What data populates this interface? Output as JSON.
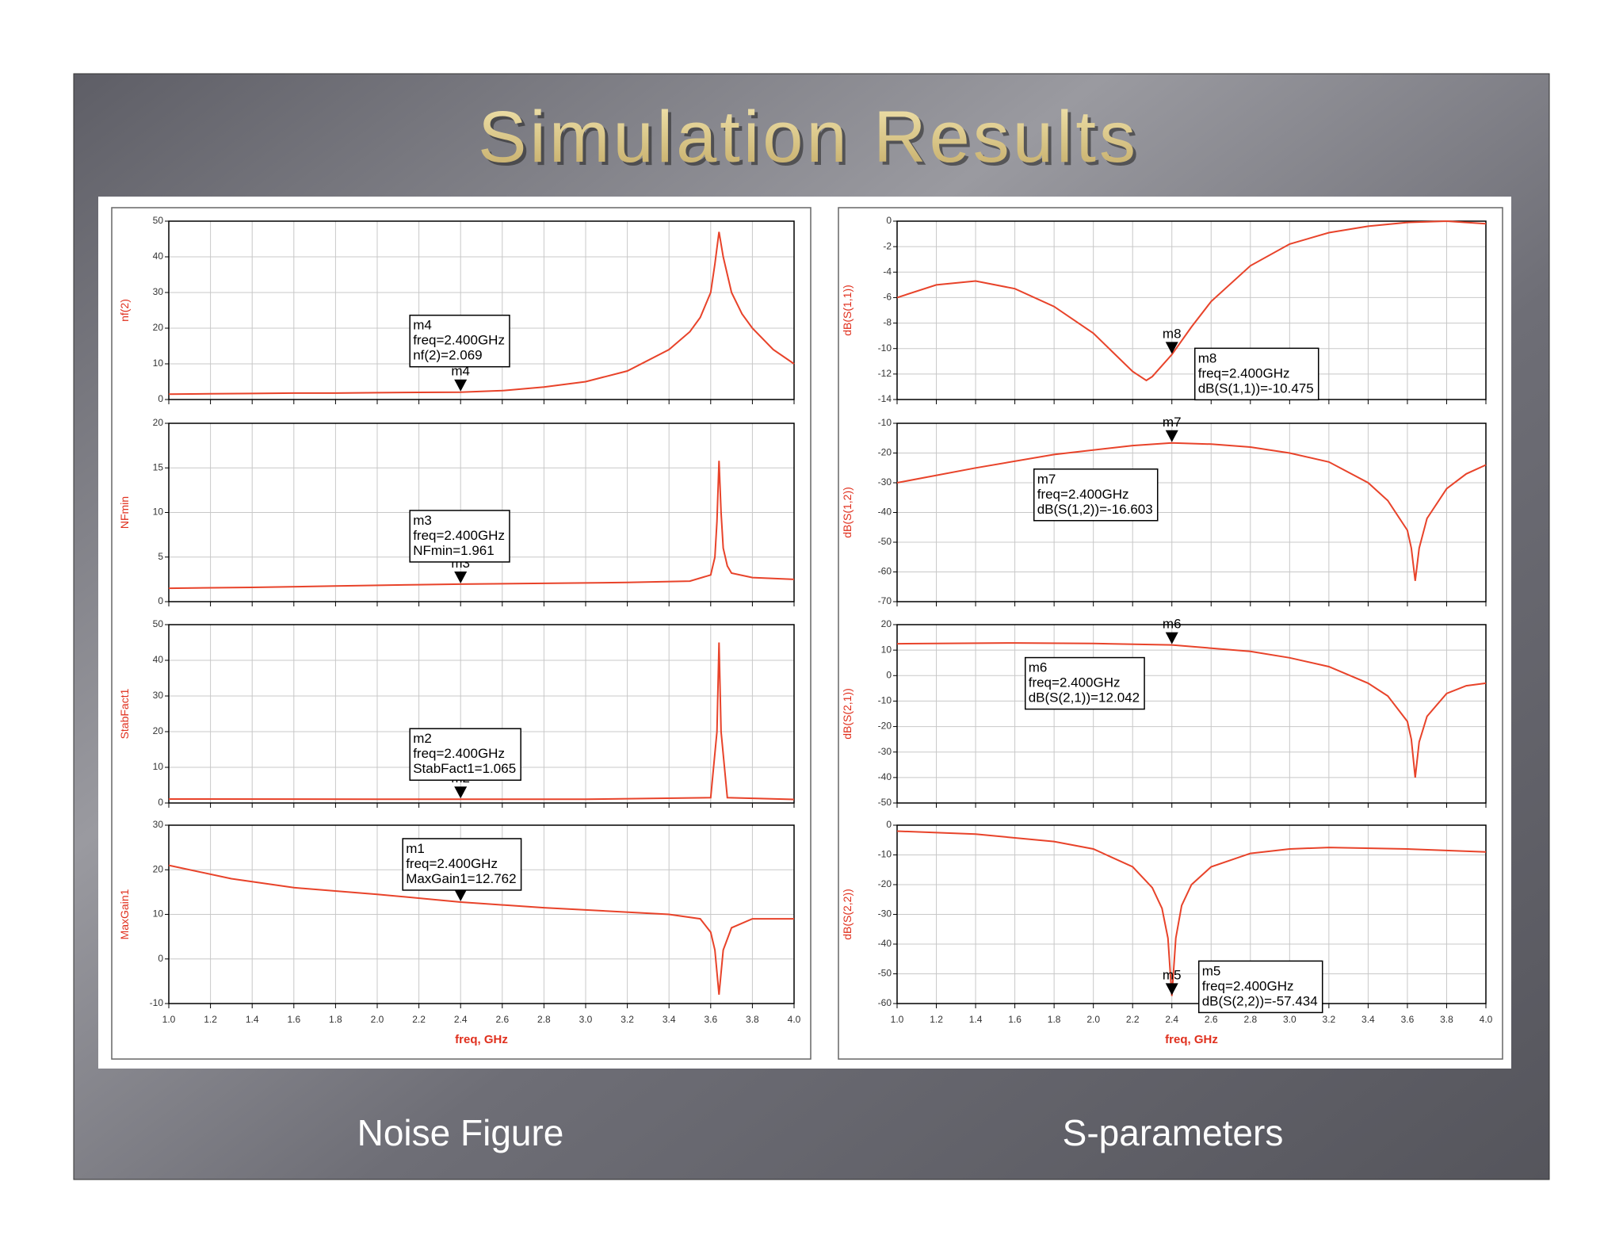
{
  "slide": {
    "title": "Simulation Results",
    "captions": [
      "Noise Figure",
      "S-parameters"
    ]
  },
  "chart_data": [
    {
      "type": "line",
      "ylabel": "nf(2)",
      "color": "#e8432a",
      "grid": true,
      "x": [
        1.0,
        1.2,
        1.4,
        1.6,
        1.8,
        2.0,
        2.2,
        2.4,
        2.6,
        2.8,
        3.0,
        3.2,
        3.4,
        3.5,
        3.55,
        3.6,
        3.62,
        3.64,
        3.66,
        3.7,
        3.75,
        3.8,
        3.9,
        4.0
      ],
      "values": [
        1.5,
        1.6,
        1.7,
        1.8,
        1.8,
        1.9,
        2.0,
        2.069,
        2.5,
        3.5,
        5,
        8,
        14,
        19,
        23,
        30,
        38,
        47,
        40,
        30,
        24,
        20,
        14,
        10
      ],
      "xlim": [
        1,
        4
      ],
      "xticks": [
        1,
        1.2,
        1.4,
        1.6,
        1.8,
        2,
        2.2,
        2.4,
        2.6,
        2.8,
        3,
        3.2,
        3.4,
        3.6,
        3.8,
        4
      ],
      "ylim": [
        0,
        50
      ],
      "yticks": [
        0,
        10,
        20,
        30,
        40,
        50
      ],
      "marker": {
        "name": "m4",
        "x": 2.4,
        "y": 2.069,
        "text": [
          "freq=2.400GHz",
          "nf(2)=2.069"
        ]
      }
    },
    {
      "type": "line",
      "ylabel": "NFmin",
      "color": "#e8432a",
      "grid": true,
      "x": [
        1.0,
        1.4,
        1.8,
        2.2,
        2.4,
        2.8,
        3.2,
        3.5,
        3.6,
        3.62,
        3.63,
        3.64,
        3.65,
        3.66,
        3.68,
        3.7,
        3.8,
        4.0
      ],
      "values": [
        1.5,
        1.6,
        1.75,
        1.9,
        1.961,
        2.05,
        2.15,
        2.3,
        3,
        5,
        9,
        15.8,
        10,
        6,
        4,
        3.2,
        2.7,
        2.5
      ],
      "xlim": [
        1,
        4
      ],
      "xticks": [
        1,
        1.2,
        1.4,
        1.6,
        1.8,
        2,
        2.2,
        2.4,
        2.6,
        2.8,
        3,
        3.2,
        3.4,
        3.6,
        3.8,
        4
      ],
      "ylim": [
        0,
        20
      ],
      "yticks": [
        0,
        5,
        10,
        15,
        20
      ],
      "marker": {
        "name": "m3",
        "x": 2.4,
        "y": 1.961,
        "text": [
          "freq=2.400GHz",
          "NFmin=1.961"
        ]
      }
    },
    {
      "type": "line",
      "ylabel": "StabFact1",
      "color": "#e8432a",
      "grid": true,
      "x": [
        1.0,
        2.0,
        2.4,
        3.0,
        3.6,
        3.63,
        3.64,
        3.65,
        3.68,
        4.0
      ],
      "values": [
        1.1,
        1.07,
        1.065,
        1.05,
        1.5,
        20,
        45,
        20,
        1.5,
        1.0
      ],
      "xlim": [
        1,
        4
      ],
      "xticks": [
        1,
        1.2,
        1.4,
        1.6,
        1.8,
        2,
        2.2,
        2.4,
        2.6,
        2.8,
        3,
        3.2,
        3.4,
        3.6,
        3.8,
        4
      ],
      "ylim": [
        0,
        50
      ],
      "yticks": [
        0,
        10,
        20,
        30,
        40,
        50
      ],
      "marker": {
        "name": "m2",
        "x": 2.4,
        "y": 1.065,
        "text": [
          "freq=2.400GHz",
          "StabFact1=1.065"
        ]
      }
    },
    {
      "type": "line",
      "ylabel": "MaxGain1",
      "xlabel": "freq, GHz",
      "color": "#e8432a",
      "grid": true,
      "x": [
        1.0,
        1.3,
        1.6,
        2.0,
        2.4,
        2.8,
        3.0,
        3.4,
        3.55,
        3.6,
        3.62,
        3.64,
        3.66,
        3.7,
        3.8,
        4.0
      ],
      "values": [
        21,
        18,
        16,
        14.5,
        12.762,
        11.5,
        11,
        10,
        9,
        6,
        2,
        -8,
        2,
        7,
        9,
        9
      ],
      "xlim": [
        1,
        4
      ],
      "xticks": [
        {
          "value": 1,
          "label": "1.0"
        },
        1.2,
        1.4,
        1.6,
        1.8,
        {
          "value": 2,
          "label": "2.0"
        },
        2.2,
        2.4,
        2.6,
        2.8,
        {
          "value": 3,
          "label": "3.0"
        },
        3.2,
        3.4,
        3.6,
        3.8,
        {
          "value": 4,
          "label": "4.0"
        }
      ],
      "ylim": [
        -10,
        30
      ],
      "yticks": [
        -10,
        0,
        10,
        20,
        30
      ],
      "marker": {
        "name": "m1",
        "x": 2.4,
        "y": 12.762,
        "text": [
          "freq=2.400GHz",
          "MaxGain1=12.762"
        ]
      }
    },
    {
      "type": "line",
      "ylabel": "dB(S(1,1))",
      "color": "#e8432a",
      "grid": true,
      "x": [
        1.0,
        1.2,
        1.4,
        1.6,
        1.8,
        2.0,
        2.1,
        2.2,
        2.27,
        2.3,
        2.4,
        2.5,
        2.6,
        2.8,
        3.0,
        3.2,
        3.4,
        3.6,
        3.8,
        4.0
      ],
      "values": [
        -6,
        -5,
        -4.7,
        -5.3,
        -6.7,
        -8.8,
        -10.3,
        -11.8,
        -12.5,
        -12.2,
        -10.475,
        -8.3,
        -6.3,
        -3.5,
        -1.8,
        -0.9,
        -0.4,
        -0.1,
        0,
        -0.2
      ],
      "xlim": [
        1,
        4
      ],
      "xticks": [
        1,
        1.2,
        1.4,
        1.6,
        1.8,
        2,
        2.2,
        2.4,
        2.6,
        2.8,
        3,
        3.2,
        3.4,
        3.6,
        3.8,
        4
      ],
      "ylim": [
        -14,
        0
      ],
      "yticks": [
        -14,
        -12,
        -10,
        -8,
        -6,
        -4,
        -2,
        0
      ],
      "marker": {
        "name": "m8",
        "x": 2.4,
        "y": -10.475,
        "text": [
          "freq=2.400GHz",
          "dB(S(1,1))=-10.475"
        ]
      }
    },
    {
      "type": "line",
      "ylabel": "dB(S(1,2))",
      "color": "#e8432a",
      "grid": true,
      "x": [
        1.0,
        1.4,
        1.8,
        2.2,
        2.4,
        2.6,
        2.8,
        3.0,
        3.2,
        3.4,
        3.5,
        3.6,
        3.62,
        3.64,
        3.66,
        3.7,
        3.8,
        3.9,
        4.0
      ],
      "values": [
        -30,
        -25,
        -20.5,
        -17.5,
        -16.603,
        -17,
        -18,
        -20,
        -23,
        -30,
        -36,
        -46,
        -52,
        -63,
        -52,
        -42,
        -32,
        -27,
        -24
      ],
      "xlim": [
        1,
        4
      ],
      "xticks": [
        1,
        1.2,
        1.4,
        1.6,
        1.8,
        2,
        2.2,
        2.4,
        2.6,
        2.8,
        3,
        3.2,
        3.4,
        3.6,
        3.8,
        4
      ],
      "ylim": [
        -70,
        -10
      ],
      "yticks": [
        -70,
        -60,
        -50,
        -40,
        -30,
        -20,
        -10
      ],
      "marker": {
        "name": "m7",
        "x": 2.4,
        "y": -16.603,
        "text": [
          "freq=2.400GHz",
          "dB(S(1,2))=-16.603"
        ]
      }
    },
    {
      "type": "line",
      "ylabel": "dB(S(2,1))",
      "color": "#e8432a",
      "grid": true,
      "x": [
        1.0,
        1.6,
        2.0,
        2.4,
        2.8,
        3.0,
        3.2,
        3.4,
        3.5,
        3.6,
        3.62,
        3.64,
        3.66,
        3.7,
        3.8,
        3.9,
        4.0
      ],
      "values": [
        12.5,
        12.8,
        12.6,
        12.042,
        9.5,
        7,
        3.5,
        -3,
        -8,
        -18,
        -25,
        -40,
        -26,
        -16,
        -7,
        -4,
        -3
      ],
      "xlim": [
        1,
        4
      ],
      "xticks": [
        1,
        1.2,
        1.4,
        1.6,
        1.8,
        2,
        2.2,
        2.4,
        2.6,
        2.8,
        3,
        3.2,
        3.4,
        3.6,
        3.8,
        4
      ],
      "ylim": [
        -50,
        20
      ],
      "yticks": [
        -50,
        -40,
        -30,
        -20,
        -10,
        0,
        10,
        20
      ],
      "marker": {
        "name": "m6",
        "x": 2.4,
        "y": 12.042,
        "text": [
          "freq=2.400GHz",
          "dB(S(2,1))=12.042"
        ]
      }
    },
    {
      "type": "line",
      "ylabel": "dB(S(2,2))",
      "xlabel": "freq, GHz",
      "color": "#e8432a",
      "grid": true,
      "x": [
        1.0,
        1.4,
        1.8,
        2.0,
        2.2,
        2.3,
        2.35,
        2.38,
        2.4,
        2.42,
        2.45,
        2.5,
        2.6,
        2.8,
        3.0,
        3.2,
        3.6,
        4.0
      ],
      "values": [
        -2,
        -3,
        -5.5,
        -8,
        -14,
        -21,
        -28,
        -38,
        -57.434,
        -38,
        -27,
        -20,
        -14,
        -9.5,
        -8,
        -7.5,
        -8,
        -9
      ],
      "xlim": [
        1,
        4
      ],
      "xticks": [
        {
          "value": 1,
          "label": "1.0"
        },
        1.2,
        1.4,
        1.6,
        1.8,
        {
          "value": 2,
          "label": "2.0"
        },
        2.2,
        2.4,
        2.6,
        2.8,
        {
          "value": 3,
          "label": "3.0"
        },
        3.2,
        3.4,
        3.6,
        3.8,
        {
          "value": 4,
          "label": "4.0"
        }
      ],
      "ylim": [
        -60,
        0
      ],
      "yticks": [
        -60,
        -50,
        -40,
        -30,
        -20,
        -10,
        0
      ],
      "marker": {
        "name": "m5",
        "x": 2.4,
        "y": -57.434,
        "text": [
          "freq=2.400GHz",
          "dB(S(2,2))=-57.434"
        ]
      }
    }
  ]
}
